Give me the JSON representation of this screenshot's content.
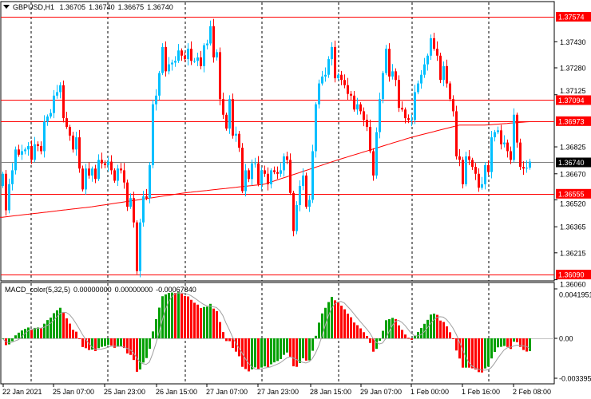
{
  "header": {
    "symbol_timeframe": "GBPUSD,H1",
    "open": "1.36705",
    "high": "1.36740",
    "low": "1.36675",
    "close": "1.36740"
  },
  "macd_header": {
    "name": "MACD_color(5,32,5)",
    "v1": "0.00000000",
    "v2": "0.00000000",
    "v3": "-0.00067840"
  },
  "colors": {
    "bull": "#00BFFF",
    "bear": "#FF0000",
    "level": "#FF0000",
    "current": "#808080",
    "macd_up": "#00A000",
    "macd_down": "#FF0000",
    "signal": "#A0A0A0"
  },
  "chart_data": [
    {
      "type": "candlestick",
      "title": "GBPUSD,H1",
      "grid": "vertical dashed",
      "ylim": [
        1.3606,
        1.37574
      ],
      "y_tick_labels": [
        "1.37430",
        "1.37280",
        "1.37125",
        "1.36825",
        "1.36670",
        "1.36520",
        "1.36365",
        "1.36215",
        "1.36060"
      ],
      "x_tick_labels": [
        "22 Jan 2021",
        "25 Jan 07:00",
        "25 Jan 23:00",
        "26 Jan 15:00",
        "27 Jan 07:00",
        "27 Jan 23:00",
        "28 Jan 15:00",
        "29 Jan 07:00",
        "1 Feb 00:00",
        "1 Feb 16:00",
        "2 Feb 08:00"
      ],
      "levels": [
        "1.37574",
        "1.37094",
        "1.36973",
        "1.36555",
        "1.36090"
      ],
      "current_price": "1.36740",
      "close": [
        1.3667,
        1.3646,
        1.3661,
        1.3669,
        1.3681,
        1.3678,
        1.368,
        1.3681,
        1.3683,
        1.3675,
        1.3684,
        1.3683,
        1.368,
        1.3697,
        1.37,
        1.3702,
        1.3712,
        1.3714,
        1.3718,
        1.3699,
        1.3694,
        1.3689,
        1.3681,
        1.3688,
        1.367,
        1.3658,
        1.367,
        1.3666,
        1.367,
        1.3664,
        1.3675,
        1.3673,
        1.3672,
        1.3674,
        1.3669,
        1.3663,
        1.367,
        1.3669,
        1.3662,
        1.3648,
        1.3653,
        1.3639,
        1.3611,
        1.3639,
        1.3654,
        1.3653,
        1.3672,
        1.3707,
        1.3712,
        1.3725,
        1.374,
        1.3726,
        1.373,
        1.3731,
        1.3732,
        1.3738,
        1.3735,
        1.3733,
        1.3739,
        1.3732,
        1.3732,
        1.3734,
        1.3729,
        1.3741,
        1.3742,
        1.3752,
        1.3734,
        1.3737,
        1.371,
        1.3701,
        1.3693,
        1.371,
        1.3689,
        1.369,
        1.3682,
        1.3657,
        1.3669,
        1.3664,
        1.3673,
        1.3673,
        1.3661,
        1.3669,
        1.3667,
        1.3661,
        1.3669,
        1.3668,
        1.3667,
        1.3669,
        1.3677,
        1.3675,
        1.3656,
        1.3634,
        1.3649,
        1.366,
        1.3666,
        1.3648,
        1.3652,
        1.368,
        1.3707,
        1.3719,
        1.3723,
        1.3724,
        1.3733,
        1.374,
        1.3722,
        1.3724,
        1.3721,
        1.3718,
        1.3713,
        1.3712,
        1.3704,
        1.3707,
        1.3703,
        1.3698,
        1.3694,
        1.368,
        1.3666,
        1.3691,
        1.371,
        1.3725,
        1.3739,
        1.3723,
        1.3726,
        1.3721,
        1.3705,
        1.3704,
        1.3699,
        1.3698,
        1.3698,
        1.3714,
        1.3719,
        1.3724,
        1.373,
        1.3735,
        1.3745,
        1.3739,
        1.3735,
        1.3721,
        1.3729,
        1.3719,
        1.371,
        1.3703,
        1.3677,
        1.3675,
        1.3661,
        1.3677,
        1.3675,
        1.3671,
        1.3667,
        1.3659,
        1.3661,
        1.3672,
        1.3668,
        1.3688,
        1.3691,
        1.3692,
        1.3684,
        1.3685,
        1.368,
        1.3675,
        1.3701,
        1.3685,
        1.3671,
        1.367,
        1.36705,
        1.3674
      ],
      "moving_average": {
        "index": [
          0,
          28,
          57,
          82,
          105,
          128,
          143,
          151,
          165
        ],
        "value": [
          1.3642,
          1.3648,
          1.3656,
          1.3661,
          1.3675,
          1.3688,
          1.3695,
          1.3695,
          1.3697
        ]
      }
    },
    {
      "type": "bar",
      "title": "MACD_color(5,32,5)",
      "ylim": [
        -0.003395,
        0.0041951
      ],
      "y_tick_labels": [
        "0.0041951",
        "0.00",
        "-0.003395"
      ]
    }
  ]
}
